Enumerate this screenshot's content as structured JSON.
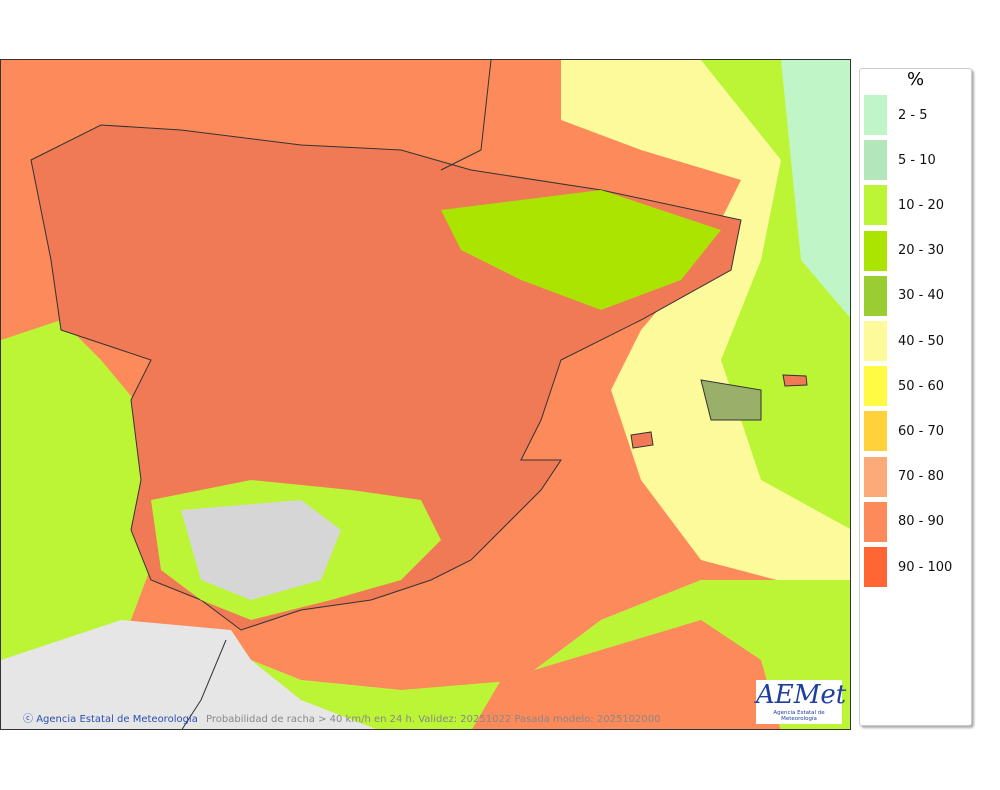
{
  "map": {
    "caption": "Probabilidad de racha > 40 km/h en 24 h. Validez: 20251022 Pasada modelo: 2025102000",
    "credit": "Agencia Estatal de Meteorología",
    "logo_text": "AEMet",
    "logo_subtitle": "Agencia Estatal de Meteorología"
  },
  "legend": {
    "unit": "%",
    "items": [
      {
        "label": "2 - 5",
        "color": "#c0f5c8"
      },
      {
        "label": "5 - 10",
        "color": "#b3e6b8"
      },
      {
        "label": "10 - 20",
        "color": "#bbf535"
      },
      {
        "label": "20 - 30",
        "color": "#aae400"
      },
      {
        "label": "30 - 40",
        "color": "#9acd32"
      },
      {
        "label": "40 - 50",
        "color": "#fdfa9c"
      },
      {
        "label": "50 - 60",
        "color": "#fffa44"
      },
      {
        "label": "60 - 70",
        "color": "#ffd23c"
      },
      {
        "label": "70 - 80",
        "color": "#fcaa7a"
      },
      {
        "label": "80 - 90",
        "color": "#fd8a5a"
      },
      {
        "label": "90 - 100",
        "color": "#ff6633"
      }
    ]
  }
}
